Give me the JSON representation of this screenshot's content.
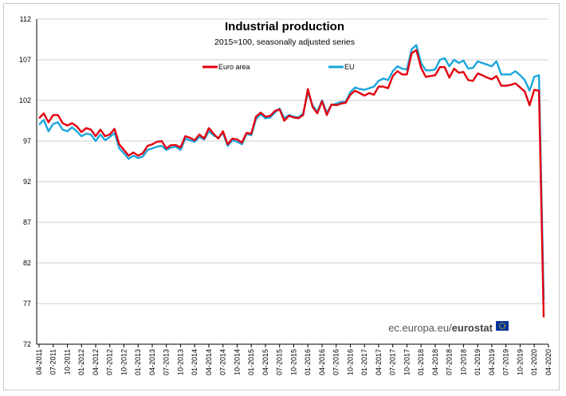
{
  "chart_data": {
    "type": "line",
    "title": "Industrial production",
    "subtitle": "2015=100, seasonally adjusted series",
    "ylim": [
      72,
      112
    ],
    "y_ticks": [
      72,
      77,
      82,
      87,
      92,
      97,
      102,
      107,
      112
    ],
    "x_start": "2011-04",
    "x_tick_labels": [
      "04-2011",
      "07-2011",
      "10-2011",
      "01-2012",
      "04-2012",
      "07-2012",
      "10-2012",
      "01-2013",
      "04-2013",
      "07-2013",
      "10-2013",
      "01-2014",
      "04-2014",
      "07-2014",
      "10-2014",
      "01-2015",
      "04-2015",
      "07-2015",
      "10-2015",
      "01-2016",
      "04-2016",
      "07-2016",
      "10-2016",
      "01-2017",
      "04-2017",
      "07-2017",
      "10-2017",
      "01-2018",
      "04-2018",
      "07-2018",
      "10-2018",
      "01-2019",
      "04-2019",
      "07-2019",
      "10-2019",
      "01-2020",
      "04-2020"
    ],
    "grid": true,
    "legend_position": "top",
    "series": [
      {
        "name": "Euro area",
        "color": "#e3000f",
        "values": [
          99.8,
          100.4,
          99.3,
          100.2,
          100.2,
          99.2,
          98.9,
          99.2,
          98.8,
          98.1,
          98.6,
          98.4,
          97.6,
          98.4,
          97.6,
          97.8,
          98.5,
          96.6,
          95.9,
          95.2,
          95.6,
          95.2,
          95.5,
          96.4,
          96.6,
          96.9,
          97.0,
          96.1,
          96.5,
          96.5,
          96.2,
          97.6,
          97.4,
          97.1,
          97.8,
          97.3,
          98.6,
          97.9,
          97.3,
          98.2,
          96.6,
          97.3,
          97.2,
          96.8,
          98.0,
          97.9,
          100.0,
          100.5,
          100.0,
          100.1,
          100.7,
          100.9,
          99.5,
          100.1,
          99.9,
          99.8,
          100.2,
          103.4,
          101.2,
          100.4,
          101.9,
          100.2,
          101.5,
          101.4,
          101.6,
          101.7,
          102.7,
          103.2,
          102.9,
          102.6,
          102.9,
          102.7,
          103.7,
          103.7,
          103.5,
          105.0,
          105.6,
          105.2,
          105.2,
          107.8,
          108.2,
          106.0,
          104.9,
          105.0,
          105.1,
          106.1,
          106.1,
          104.8,
          105.9,
          105.4,
          105.5,
          104.5,
          104.4,
          105.3,
          105.1,
          104.8,
          104.6,
          105.0,
          103.8,
          103.8,
          103.9,
          104.1,
          103.6,
          103.1,
          101.4,
          103.3,
          103.2,
          75.3
        ]
      },
      {
        "name": "EU",
        "color": "#1aa6dc",
        "values": [
          99.0,
          99.6,
          98.2,
          99.1,
          99.3,
          98.4,
          98.2,
          98.7,
          98.2,
          97.6,
          97.9,
          97.8,
          97.0,
          97.8,
          97.1,
          97.5,
          98.0,
          96.1,
          95.5,
          94.8,
          95.2,
          94.9,
          95.1,
          95.9,
          96.1,
          96.3,
          96.4,
          95.9,
          96.2,
          96.3,
          95.9,
          97.3,
          97.1,
          96.9,
          97.5,
          97.2,
          98.2,
          97.7,
          97.4,
          98.0,
          96.4,
          97.1,
          96.9,
          96.6,
          97.9,
          97.7,
          99.7,
          100.3,
          99.8,
          99.9,
          100.5,
          101.0,
          99.8,
          100.2,
          100.0,
          99.9,
          100.4,
          103.0,
          101.4,
          100.6,
          102.0,
          100.5,
          101.4,
          101.6,
          101.8,
          101.8,
          103.0,
          103.6,
          103.4,
          103.3,
          103.5,
          103.7,
          104.4,
          104.7,
          104.5,
          105.6,
          106.2,
          105.9,
          105.8,
          108.3,
          108.8,
          106.6,
          105.7,
          105.7,
          105.8,
          107.0,
          107.2,
          106.2,
          107.0,
          106.6,
          106.9,
          105.9,
          106.0,
          106.8,
          106.6,
          106.4,
          106.2,
          106.8,
          105.2,
          105.2,
          105.2,
          105.6,
          105.1,
          104.5,
          103.2,
          104.9,
          105.1,
          77.5
        ]
      }
    ]
  },
  "credit": {
    "site": "ec.europa.eu/",
    "brand": "eurostat"
  }
}
